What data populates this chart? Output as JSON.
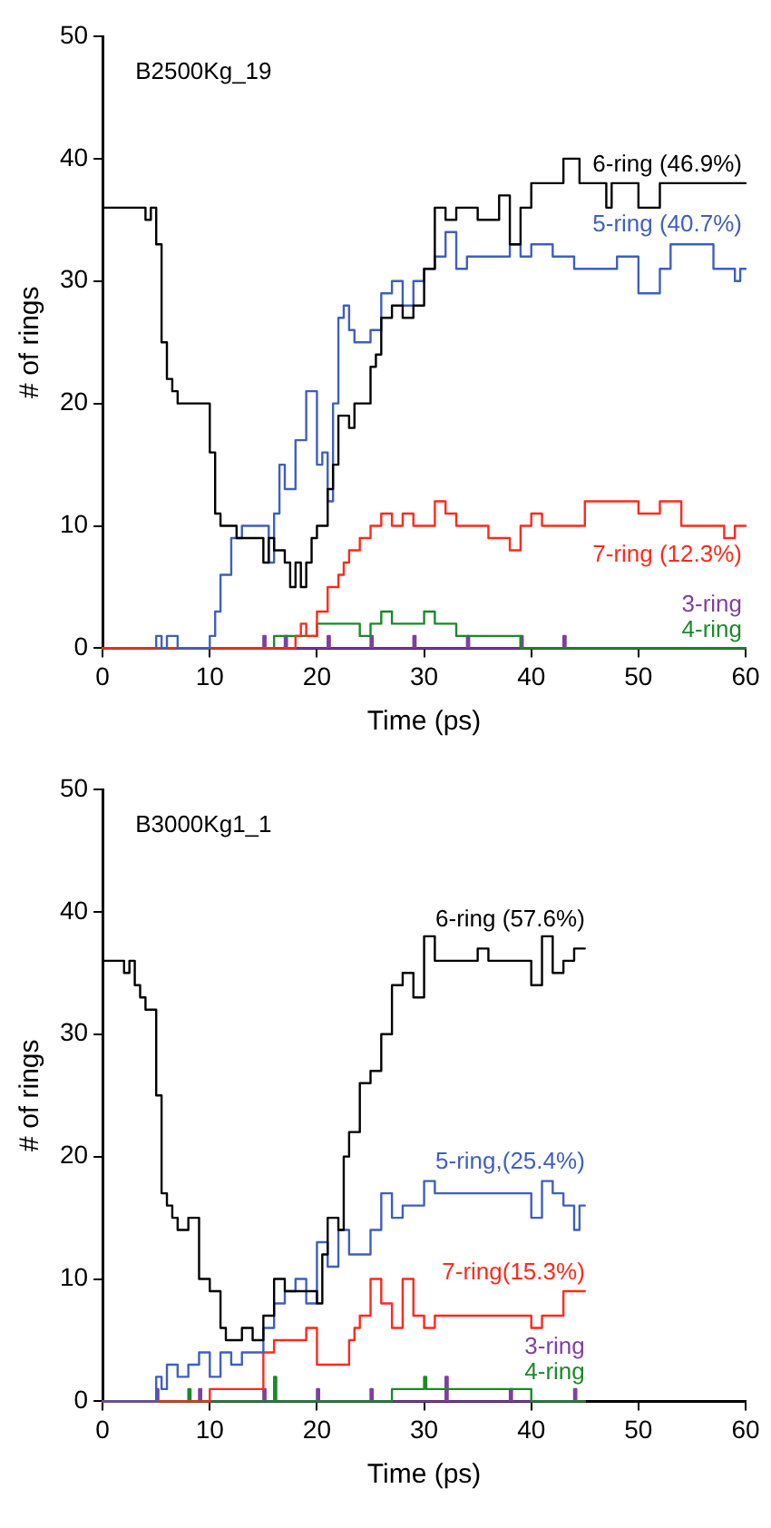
{
  "chart_data": [
    {
      "type": "step",
      "title": "B2500Kg_19",
      "xlabel": "Time (ps)",
      "ylabel": "# of rings",
      "xlim": [
        0,
        60
      ],
      "xticks": [
        0,
        10,
        20,
        30,
        40,
        50,
        60
      ],
      "ylim": [
        0,
        50
      ],
      "yticks": [
        0,
        10,
        20,
        30,
        40,
        50
      ],
      "grid": false,
      "legend": false,
      "series": [
        {
          "name": "6-ring (46.9%)",
          "color": "#000000",
          "x": [
            0,
            4,
            4.5,
            5,
            5.5,
            6,
            6.5,
            7,
            7.5,
            10,
            10.5,
            11,
            11.5,
            12.5,
            13,
            15,
            15.5,
            16,
            17,
            17.5,
            18,
            18.5,
            19,
            19.5,
            20,
            21,
            21.5,
            22,
            23,
            23.5,
            25,
            25.5,
            26,
            27,
            28,
            29,
            30,
            31,
            32,
            33,
            35,
            37,
            38,
            39,
            40,
            41,
            43,
            43.5,
            44.5,
            45,
            47,
            47.5,
            50,
            52,
            53,
            60
          ],
          "values": [
            36,
            36,
            35,
            36,
            33,
            25,
            22,
            21,
            20,
            20,
            16,
            11,
            10,
            10,
            9,
            9,
            7,
            9,
            8,
            7,
            5,
            7,
            5,
            7,
            9,
            10,
            13,
            15,
            19,
            18,
            20,
            23,
            24,
            27,
            28,
            27,
            28,
            31,
            36,
            35,
            36,
            35,
            37,
            33,
            36,
            38,
            38,
            40,
            40,
            38,
            38,
            36,
            38,
            36,
            38,
            38
          ]
        },
        {
          "name": "5-ring (40.7%)",
          "color": "#3f5fbf",
          "x": [
            5,
            5.5,
            6,
            7,
            8,
            10,
            10.5,
            11,
            12,
            13,
            14,
            15.5,
            16,
            16.5,
            17,
            18,
            19,
            20,
            20.5,
            21,
            21.5,
            22,
            22.5,
            23,
            23.5,
            25,
            26,
            27,
            28,
            29,
            30,
            31,
            32,
            33,
            34,
            36,
            38,
            39,
            40,
            42,
            44,
            45,
            48,
            50,
            52,
            53,
            55,
            57,
            59,
            59.5,
            60
          ],
          "values": [
            0,
            1,
            0,
            1,
            0,
            0,
            1,
            3,
            6,
            9,
            10,
            10,
            7,
            11,
            15,
            13,
            17,
            21,
            15,
            16,
            12,
            20,
            27,
            28,
            26,
            25,
            26,
            29,
            30,
            28,
            30,
            31,
            32,
            34,
            31,
            32,
            32,
            33,
            32,
            33,
            32,
            31,
            31,
            32,
            29,
            31,
            33,
            33,
            31,
            30,
            31
          ]
        },
        {
          "name": "7-ring (12.3%)",
          "color": "#ff2a1a",
          "x": [
            0,
            18,
            18.5,
            19,
            20,
            20.5,
            21,
            22,
            22.5,
            23,
            24,
            25,
            26,
            27,
            28,
            29,
            31,
            32,
            33,
            34,
            36,
            38,
            39,
            40,
            41,
            42,
            45,
            46,
            50,
            52,
            54,
            55,
            58,
            59,
            60
          ],
          "values": [
            0,
            0,
            1,
            2,
            1,
            3,
            3,
            5,
            6,
            7,
            8,
            9,
            10,
            11,
            10,
            11,
            10,
            12,
            11,
            10,
            10,
            9,
            8,
            10,
            11,
            10,
            10,
            12,
            12,
            11,
            12,
            10,
            10,
            9,
            10
          ]
        },
        {
          "name": "4-ring",
          "color": "#1a8a2a",
          "x": [
            0,
            16,
            16.5,
            20,
            24,
            25,
            26,
            27,
            28,
            30,
            31,
            32,
            33,
            34,
            39,
            40,
            60
          ],
          "values": [
            0,
            0,
            1,
            1,
            2,
            1,
            2,
            3,
            2,
            2,
            3,
            2,
            2,
            1,
            1,
            0,
            0
          ]
        },
        {
          "name": "3-ring",
          "color": "#7f3fa0",
          "x": [
            0,
            15,
            15.2,
            15.4,
            17,
            17.2,
            17.4,
            21,
            21.2,
            21.4,
            25,
            25.2,
            25.4,
            29,
            29.2,
            29.4,
            34,
            34.2,
            34.4,
            39,
            39.2,
            39.4,
            43,
            43.2,
            43.4,
            60
          ],
          "values": [
            0,
            0,
            1,
            0,
            0,
            1,
            0,
            0,
            1,
            0,
            0,
            1,
            0,
            0,
            1,
            0,
            0,
            1,
            0,
            0,
            1,
            0,
            0,
            1,
            0,
            0
          ]
        }
      ]
    },
    {
      "type": "step",
      "title": "B3000Kg1_1",
      "xlabel": "Time (ps)",
      "ylabel": "# of rings",
      "xlim": [
        0,
        60
      ],
      "xticks": [
        0,
        10,
        20,
        30,
        40,
        50,
        60
      ],
      "ylim": [
        0,
        50
      ],
      "yticks": [
        0,
        10,
        20,
        30,
        40,
        50
      ],
      "grid": false,
      "legend": false,
      "series": [
        {
          "name": "6-ring (57.6%)",
          "color": "#000000",
          "x": [
            0,
            2,
            2.5,
            3,
            3.5,
            4,
            5,
            5.5,
            6,
            6.5,
            7,
            8,
            9,
            10,
            11,
            11.5,
            12,
            13,
            14,
            15,
            16,
            17,
            18,
            20,
            20.5,
            21,
            22,
            22.5,
            23,
            24,
            25,
            26,
            27,
            28,
            29,
            30,
            31,
            31.5,
            35,
            36,
            37,
            40,
            41,
            42,
            43,
            44,
            45
          ],
          "values": [
            36,
            36,
            35,
            36,
            34,
            33,
            32,
            25,
            17,
            16,
            15,
            14,
            15,
            10,
            9,
            6,
            5,
            5,
            6,
            5,
            7,
            10,
            9,
            9,
            8,
            12,
            15,
            14,
            20,
            22,
            26,
            27,
            30,
            34,
            35,
            33,
            38,
            36,
            36,
            37,
            36,
            36,
            34,
            38,
            35,
            36,
            37
          ]
        },
        {
          "name": "5-ring,(25.4%)",
          "color": "#3f5fbf",
          "x": [
            0,
            5,
            5.5,
            6,
            7,
            8,
            9,
            10,
            11,
            12,
            13,
            15,
            16,
            17,
            18,
            19,
            20,
            21,
            22,
            23,
            25,
            26,
            27,
            28,
            30,
            31,
            32,
            40,
            41,
            42,
            43,
            44,
            44.5,
            45
          ],
          "values": [
            0,
            0,
            2,
            1,
            3,
            2,
            3,
            4,
            2,
            4,
            3,
            4,
            6,
            8,
            9,
            10,
            8,
            13,
            11,
            14,
            12,
            14,
            17,
            15,
            16,
            18,
            17,
            17,
            15,
            18,
            17,
            16,
            14,
            16
          ]
        },
        {
          "name": "7-ring(15.3%)",
          "color": "#ff2a1a",
          "x": [
            0,
            10,
            10.5,
            15,
            16,
            17,
            19,
            20,
            21,
            23,
            23.5,
            24,
            25,
            26,
            27,
            28,
            29,
            30,
            31,
            32,
            40,
            41,
            43,
            44,
            45
          ],
          "values": [
            0,
            0,
            1,
            1,
            4,
            5,
            5,
            6,
            3,
            3,
            5,
            6,
            7,
            10,
            8,
            6,
            10,
            7,
            6,
            7,
            7,
            6,
            7,
            9,
            9
          ]
        },
        {
          "name": "4-ring",
          "color": "#1a8a2a",
          "x": [
            0,
            8,
            8.2,
            8.4,
            16,
            16.2,
            16.4,
            27,
            27.2,
            30,
            30.2,
            30.4,
            35,
            40,
            40.2,
            45
          ],
          "values": [
            0,
            0,
            1,
            0,
            0,
            2,
            0,
            0,
            1,
            1,
            2,
            1,
            1,
            1,
            0,
            0
          ]
        },
        {
          "name": "3-ring",
          "color": "#7f3fa0",
          "x": [
            0,
            5,
            5.2,
            5.4,
            9,
            9.2,
            9.4,
            15,
            15.2,
            15.4,
            20,
            20.2,
            20.4,
            25,
            25.2,
            25.4,
            32,
            32.2,
            32.4,
            38,
            38.2,
            38.4,
            44,
            44.2,
            44.4,
            45
          ],
          "values": [
            0,
            0,
            1,
            0,
            0,
            1,
            0,
            0,
            1,
            0,
            0,
            1,
            0,
            0,
            1,
            0,
            0,
            2,
            0,
            0,
            1,
            0,
            0,
            1,
            0,
            0
          ]
        }
      ]
    }
  ]
}
